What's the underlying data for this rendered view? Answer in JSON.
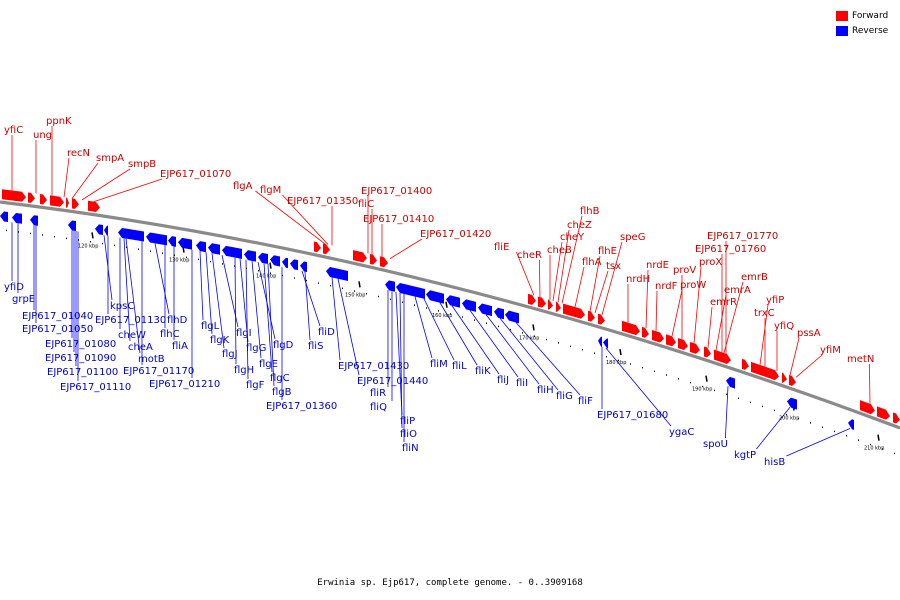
{
  "legend": {
    "forward": {
      "label": "Forward",
      "color": "#ff0000"
    },
    "reverse": {
      "label": "Reverse",
      "color": "#0000ff"
    }
  },
  "caption": "Erwinia sp. Ejp617, complete genome. - 0..3909168",
  "ticks": [
    "120 kbp",
    "130 kbp",
    "140 kbp",
    "150 kbp",
    "160 kbp",
    "170 kbp",
    "180 kbp",
    "190 kbp",
    "200 kbp",
    "210 kbp"
  ],
  "forward_genes": [
    "yfiC",
    "ung",
    "ppnK",
    "recN",
    "smpA",
    "smpB",
    "EJP617_01070",
    "flgA",
    "flgM",
    "EJP617_01350",
    "EJP617_01400",
    "fliC",
    "EJP617_01410",
    "EJP617_01420",
    "fliE",
    "cheR",
    "cheB",
    "cheY",
    "cheZ",
    "flhB",
    "flhA",
    "flhE",
    "tsx",
    "speG",
    "nrdH",
    "nrdE",
    "nrdF",
    "proW",
    "proV",
    "proX",
    "emrR",
    "emrA",
    "emrB",
    "EJP617_01760",
    "EJP617_01770",
    "yfiP",
    "trxC",
    "yfiQ",
    "pssA",
    "yfiM",
    "metN"
  ],
  "reverse_genes": [
    "yfiD",
    "grpE",
    "EJP617_01040",
    "EJP617_01050",
    "EJP617_01080",
    "EJP617_01090",
    "EJP617_01100",
    "EJP617_01110",
    "kpsC",
    "EJP617_01130",
    "cheW",
    "cheA",
    "motB",
    "EJP617_01170",
    "flhD",
    "flhC",
    "fliA",
    "EJP617_01210",
    "flgL",
    "flgK",
    "flgJ",
    "flgI",
    "flgH",
    "flgG",
    "flgF",
    "flgE",
    "flgD",
    "flgC",
    "flgB",
    "EJP617_01360",
    "fliD",
    "fliS",
    "EJP617_01430",
    "EJP617_01440",
    "fliR",
    "fliQ",
    "fliP",
    "fliO",
    "fliN",
    "fliM",
    "fliL",
    "fliK",
    "fliJ",
    "fliI",
    "fliH",
    "fliG",
    "fliF",
    "EJP617_01680",
    "ygaC",
    "spoU",
    "kgtP",
    "hisB"
  ]
}
